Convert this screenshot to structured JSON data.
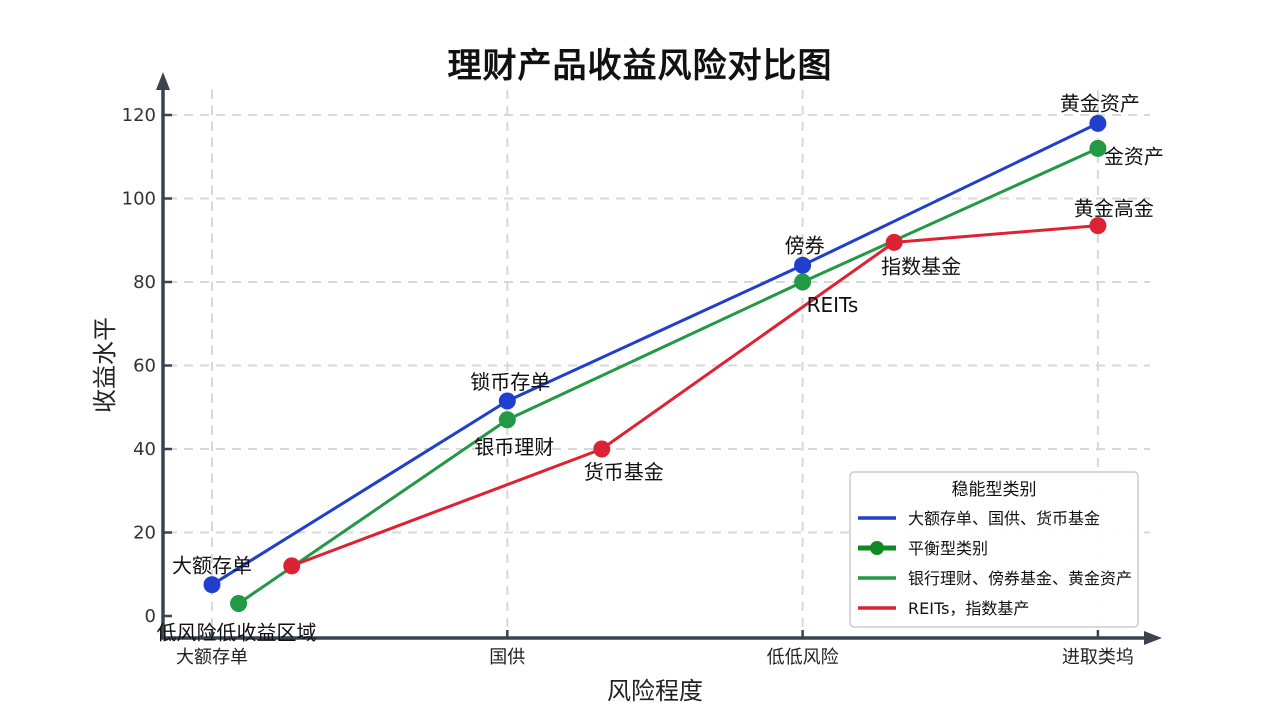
{
  "chart_data": {
    "type": "line",
    "title": "理财产品收益风险对比图",
    "xlabel": "风险程度",
    "ylabel": "收益水平",
    "categories": [
      "大额存单",
      "国供",
      "低低风险",
      "进取类坞"
    ],
    "ylim": [
      0,
      125
    ],
    "yticks": [
      0,
      20,
      40,
      60,
      80,
      100,
      120
    ],
    "grid": true,
    "legend_position": "lower right",
    "series": [
      {
        "name": "大额存单、国供、货币基金",
        "color": "#1f3fcc",
        "x": [
          0,
          1,
          2,
          3
        ],
        "values": [
          7.5,
          51.5,
          84,
          118
        ],
        "point_labels": [
          "大额存单",
          "锁币存单",
          "傍券",
          "黄金资产"
        ]
      },
      {
        "name": "银行理财、傍券基金、黄金资产",
        "color": "#229944",
        "x": [
          0.09,
          1,
          2,
          3
        ],
        "values": [
          3,
          47,
          80,
          112
        ],
        "point_labels": [
          "低风险低收益区域",
          "银币理财",
          "REITs",
          "金资产"
        ]
      },
      {
        "name": "REITs，指数基产",
        "color": "#dd2233",
        "x": [
          0.27,
          1.32,
          2.31,
          3
        ],
        "values": [
          12,
          40,
          89.5,
          93.5
        ],
        "point_labels": [
          "",
          "货币基金",
          "指数基金",
          "黄金高金"
        ]
      }
    ],
    "legend": {
      "title": "稳能型类别",
      "entries": [
        {
          "label": "大额存单、国供、货币基金",
          "color": "#1f3fcc",
          "marker": false
        },
        {
          "label": "平衡型类别",
          "color": "#118822",
          "marker": true
        },
        {
          "label": "银行理财、傍券基金、黄金资产",
          "color": "#229944",
          "marker": false
        },
        {
          "label": "REITs，指数基产",
          "color": "#dd2233",
          "marker": false
        }
      ]
    }
  }
}
